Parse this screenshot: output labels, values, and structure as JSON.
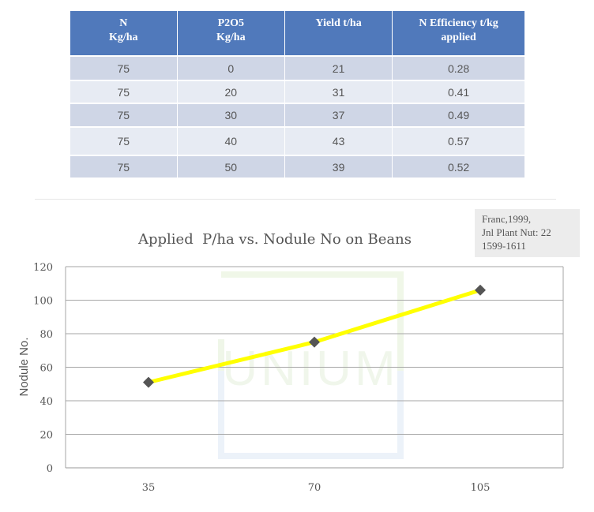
{
  "table": {
    "headers": [
      [
        "N",
        "Kg/ha"
      ],
      [
        "P2O5",
        "Kg/ha"
      ],
      [
        "Yield t/ha"
      ],
      [
        "N Efficiency t/kg",
        "applied"
      ]
    ],
    "rows": [
      [
        "75",
        "0",
        "21",
        "0.28"
      ],
      [
        "75",
        "20",
        "31",
        "0.41"
      ],
      [
        "75",
        "30",
        "37",
        "0.49"
      ],
      [
        "75",
        "40",
        "43",
        "0.57"
      ],
      [
        "75",
        "50",
        "39",
        "0.52"
      ]
    ]
  },
  "reference": {
    "lines": [
      "Franc,1999,",
      "Jnl Plant Nut: 22",
      "1599-1611"
    ]
  },
  "watermark": {
    "text": "UNIUM"
  },
  "chart_data": {
    "type": "line",
    "title": "Applied  P/ha vs. Nodule No on Beans",
    "xlabel": "",
    "ylabel": "Nodule No.",
    "categories": [
      "35",
      "70",
      "105"
    ],
    "series": [
      {
        "values": [
          51,
          75,
          106
        ],
        "color": "#ffff00",
        "marker_color": "#555555"
      }
    ],
    "ylim": [
      0,
      120
    ],
    "yticks": [
      0,
      20,
      40,
      60,
      80,
      100,
      120
    ],
    "grid": true
  }
}
